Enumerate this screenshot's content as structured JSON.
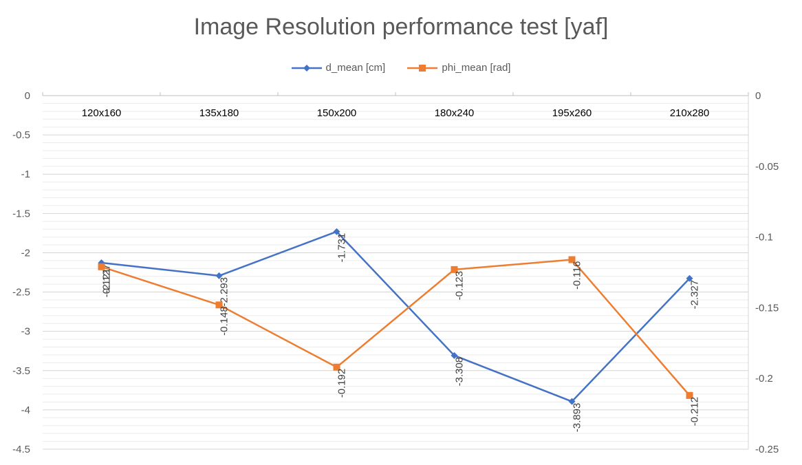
{
  "chart_data": {
    "type": "line",
    "title": "Image Resolution performance test [yaf]",
    "categories": [
      "120x160",
      "135x180",
      "150x200",
      "180x240",
      "195x260",
      "210x280"
    ],
    "series": [
      {
        "name": "d_mean [cm]",
        "axis": "left",
        "color": "#4472C4",
        "marker": "diamond",
        "values": [
          -2.127,
          -2.293,
          -1.731,
          -3.308,
          -3.893,
          -2.327
        ],
        "labels": [
          "-2.127",
          "-2.293",
          "-1.731",
          "-3.308",
          "-3.893",
          "-2.327"
        ]
      },
      {
        "name": "phi_mean [rad]",
        "axis": "right",
        "color": "#ED7D31",
        "marker": "square",
        "values": [
          -0.121,
          -0.148,
          -0.192,
          -0.123,
          -0.116,
          -0.212
        ],
        "labels": [
          "-0.121",
          "-0.148",
          "-0.192",
          "-0.123",
          "-0.116",
          "-0.212"
        ]
      }
    ],
    "y_left": {
      "lim": [
        -4.5,
        0
      ],
      "ticks": [
        "0",
        "-0.5",
        "-1",
        "-1.5",
        "-2",
        "-2.5",
        "-3",
        "-3.5",
        "-4",
        "-4.5"
      ]
    },
    "y_right": {
      "lim": [
        -0.25,
        0
      ],
      "ticks": [
        "0",
        "-0.05",
        "-0.1",
        "-0.15",
        "-0.2",
        "-0.25"
      ]
    },
    "legend_position": "top",
    "grid": true,
    "x_axis_position": "top"
  }
}
